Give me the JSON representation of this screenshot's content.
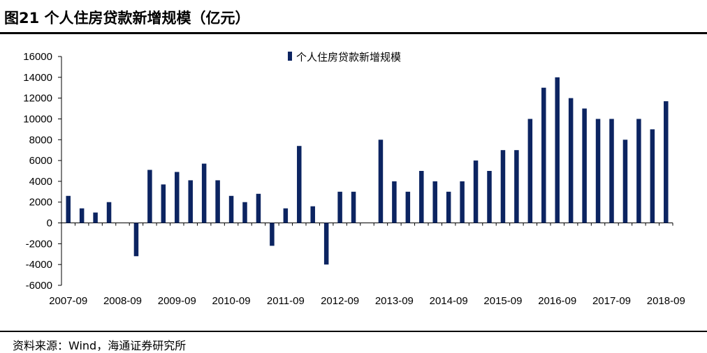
{
  "title": "图21 个人住房贷款新增规模（亿元）",
  "source": "资料来源：Wind，海通证券研究所",
  "colors": {
    "bar": "#0c2461",
    "axis": "#000000"
  },
  "chart_data": {
    "type": "bar",
    "legend": [
      "个人住房贷款新增规模"
    ],
    "legend_position": "top-center",
    "ylim": [
      -6000,
      16000
    ],
    "yticks": [
      16000,
      14000,
      12000,
      10000,
      8000,
      6000,
      4000,
      2000,
      0,
      -2000,
      -4000,
      -6000
    ],
    "xtick_labels": [
      "2007-09",
      "2008-09",
      "2009-09",
      "2010-09",
      "2011-09",
      "2012-09",
      "2013-09",
      "2014-09",
      "2015-09",
      "2016-09",
      "2017-09",
      "2018-09"
    ],
    "grid": false,
    "series": [
      {
        "name": "个人住房贷款新增规模",
        "categories": [
          "2007-09",
          "2007-12",
          "2008-03",
          "2008-06",
          "2008-09",
          "2008-12",
          "2009-03",
          "2009-06",
          "2009-09",
          "2009-12",
          "2010-03",
          "2010-06",
          "2010-09",
          "2010-12",
          "2011-03",
          "2011-06",
          "2011-09",
          "2011-12",
          "2012-03",
          "2012-06",
          "2012-09",
          "2012-12",
          "2013-03",
          "2013-06",
          "2013-09",
          "2013-12",
          "2014-03",
          "2014-06",
          "2014-09",
          "2014-12",
          "2015-03",
          "2015-06",
          "2015-09",
          "2015-12",
          "2016-03",
          "2016-06",
          "2016-09",
          "2016-12",
          "2017-03",
          "2017-06",
          "2017-09",
          "2017-12",
          "2018-03",
          "2018-06",
          "2018-09"
        ],
        "values": [
          2600,
          1400,
          1000,
          2000,
          0,
          -3200,
          5100,
          3700,
          4900,
          4100,
          5700,
          4100,
          2600,
          2000,
          2800,
          -2200,
          1400,
          7400,
          1600,
          -4000,
          3000,
          3000,
          0,
          8000,
          4000,
          3000,
          5000,
          4000,
          3000,
          4000,
          6000,
          5000,
          7000,
          7000,
          10000,
          13000,
          14000,
          12000,
          11000,
          10000,
          10000,
          8000,
          10000,
          9000,
          11700
        ]
      }
    ]
  }
}
